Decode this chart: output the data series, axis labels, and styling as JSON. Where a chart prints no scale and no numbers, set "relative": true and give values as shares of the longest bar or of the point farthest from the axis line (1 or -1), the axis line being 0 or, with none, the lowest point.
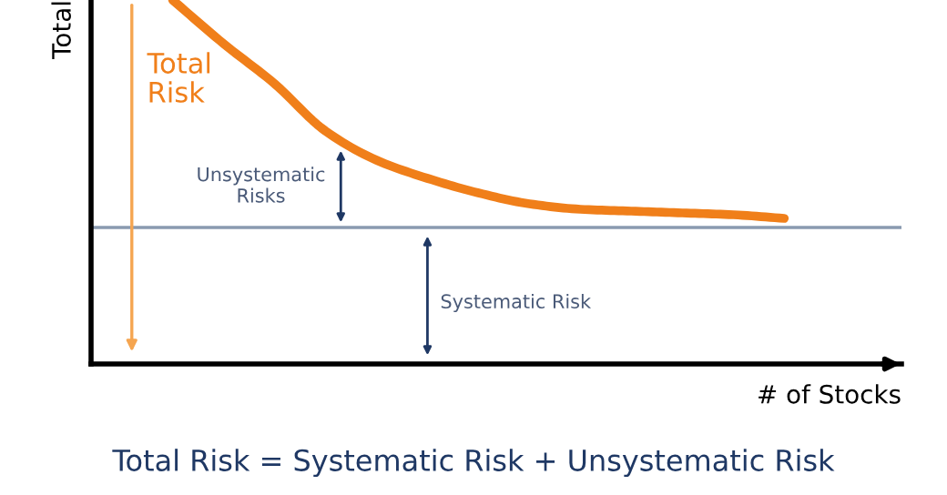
{
  "chart_data": {
    "type": "line",
    "relative": true,
    "ylabel": "Total",
    "xlabel": "# of Stocks",
    "categories": [
      null,
      null,
      null,
      null,
      null,
      null,
      null,
      null,
      null,
      null,
      null,
      null,
      null
    ],
    "series": [
      {
        "color": "#f07f1a",
        "values": [
          1.0,
          0.88,
          0.77,
          0.64,
          0.56,
          0.51,
          0.47,
          0.44,
          0.425,
          0.42,
          0.415,
          0.41,
          0.4
        ]
      }
    ],
    "ref_lines": [
      {
        "axis": "y",
        "value": 0.375,
        "color": "#8a9ab0"
      }
    ],
    "annotations": [
      "Total\nRisk",
      "Unsystematic\nRisks",
      "Systematic Risk",
      "Total Risk = Systematic Risk + Unsystematic Risk"
    ],
    "legend": false,
    "marker": "none",
    "line_style": "solid"
  }
}
